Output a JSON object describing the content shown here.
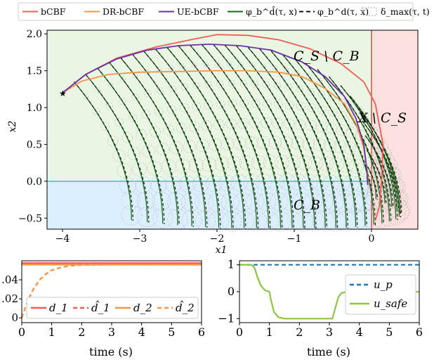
{
  "legend": {
    "entries": [
      {
        "label": "bCBF",
        "color": "#f25c54",
        "style": "solid"
      },
      {
        "label": "DR-bCBF",
        "color": "#f59548",
        "style": "solid"
      },
      {
        "label": "UE-bCBF",
        "color": "#6a32a8",
        "style": "solid"
      },
      {
        "label": "φ_b^d̂(τ, x)",
        "color": "#1a6b1a",
        "style": "solid"
      },
      {
        "label": "φ_b^d(τ, x)",
        "color": "#111111",
        "style": "dashed"
      },
      {
        "label": "δ_max(τ, t)",
        "color": "#aaaaaa",
        "style": "dotted-box"
      }
    ]
  },
  "region_labels": {
    "safe_minus_backup": "C_S \\ C_B",
    "outside_safe": "X \\ C_S",
    "backup": "C_B"
  },
  "colors": {
    "safe_region": "#eaf6e3",
    "backup_region": "#dcefff",
    "unsafe_region": "#fde0e0",
    "boundary_safe": "#e03030",
    "boundary_backup": "#2aa7d8",
    "uncertainty": "#bbbbbb"
  },
  "chart_data": [
    {
      "type": "line",
      "id": "phase",
      "xlabel": "x1",
      "ylabel": "x2",
      "xlim": [
        -4.2,
        0.6
      ],
      "ylim": [
        -0.65,
        2.05
      ],
      "xticks": [
        -4,
        -3,
        -2,
        -1,
        0
      ],
      "yticks": [
        -0.5,
        0.0,
        0.5,
        1.0,
        1.5,
        2.0
      ],
      "regions": {
        "safe_boundary_x1": 0,
        "backup_boundary_x2": 0
      },
      "start_point": [
        -4.0,
        1.2
      ],
      "series": [
        {
          "name": "bCBF",
          "color": "#f25c54",
          "points": [
            [
              -4.0,
              1.2
            ],
            [
              -3.7,
              1.45
            ],
            [
              -3.3,
              1.67
            ],
            [
              -2.8,
              1.82
            ],
            [
              -2.3,
              1.93
            ],
            [
              -2.0,
              1.99
            ],
            [
              -1.6,
              1.98
            ],
            [
              -1.2,
              1.92
            ],
            [
              -0.8,
              1.8
            ],
            [
              -0.4,
              1.6
            ],
            [
              -0.1,
              1.35
            ],
            [
              0.05,
              1.05
            ],
            [
              0.15,
              0.5
            ],
            [
              0.13,
              0.0
            ],
            [
              0.1,
              -0.35
            ],
            [
              0.05,
              -0.53
            ]
          ]
        },
        {
          "name": "DR-bCBF",
          "color": "#f59548",
          "points": [
            [
              -4.0,
              1.2
            ],
            [
              -3.75,
              1.36
            ],
            [
              -3.4,
              1.45
            ],
            [
              -3.0,
              1.48
            ],
            [
              -2.5,
              1.49
            ],
            [
              -2.0,
              1.5
            ],
            [
              -1.6,
              1.5
            ],
            [
              -1.2,
              1.48
            ],
            [
              -0.9,
              1.42
            ],
            [
              -0.6,
              1.26
            ],
            [
              -0.35,
              1.05
            ],
            [
              -0.2,
              0.78
            ],
            [
              -0.1,
              0.45
            ],
            [
              -0.05,
              0.1
            ],
            [
              -0.05,
              -0.05
            ]
          ]
        },
        {
          "name": "UE-bCBF",
          "color": "#6a32a8",
          "points": [
            [
              -4.0,
              1.2
            ],
            [
              -3.7,
              1.45
            ],
            [
              -3.3,
              1.66
            ],
            [
              -2.9,
              1.78
            ],
            [
              -2.5,
              1.84
            ],
            [
              -2.1,
              1.86
            ],
            [
              -1.7,
              1.84
            ],
            [
              -1.3,
              1.78
            ],
            [
              -0.9,
              1.62
            ],
            [
              -0.6,
              1.42
            ],
            [
              -0.35,
              1.15
            ],
            [
              -0.2,
              0.85
            ],
            [
              -0.1,
              0.5
            ],
            [
              -0.06,
              0.15
            ],
            [
              -0.05,
              -0.05
            ]
          ]
        }
      ],
      "backup_start_points": [
        [
          -3.85,
          1.35
        ],
        [
          -3.7,
          1.45
        ],
        [
          -3.55,
          1.54
        ],
        [
          -3.4,
          1.62
        ],
        [
          -3.25,
          1.68
        ],
        [
          -3.1,
          1.73
        ],
        [
          -2.95,
          1.77
        ],
        [
          -2.8,
          1.8
        ],
        [
          -2.65,
          1.82
        ],
        [
          -2.5,
          1.84
        ],
        [
          -2.35,
          1.85
        ],
        [
          -2.2,
          1.86
        ],
        [
          -2.05,
          1.86
        ],
        [
          -1.9,
          1.85
        ],
        [
          -1.75,
          1.84
        ],
        [
          -1.6,
          1.82
        ],
        [
          -1.45,
          1.8
        ],
        [
          -1.3,
          1.77
        ],
        [
          -1.15,
          1.72
        ],
        [
          -1.0,
          1.67
        ],
        [
          -0.85,
          1.6
        ],
        [
          -0.7,
          1.52
        ],
        [
          -0.55,
          1.42
        ],
        [
          -0.4,
          1.3
        ],
        [
          -0.28,
          1.16
        ],
        [
          -0.18,
          1.0
        ],
        [
          -0.12,
          0.82
        ],
        [
          -0.08,
          0.62
        ],
        [
          -0.06,
          0.42
        ],
        [
          -0.05,
          0.2
        ]
      ],
      "backup_decay": 0.55
    },
    {
      "type": "line",
      "id": "disturbance",
      "xlabel": "time (s)",
      "ylabel": "",
      "xlim": [
        0,
        6
      ],
      "ylim": [
        -0.005,
        0.06
      ],
      "xticks": [
        0,
        1,
        2,
        3,
        4,
        5,
        6
      ],
      "ytick_labels": [
        ".04",
        ".02",
        "0"
      ],
      "ytick_values": [
        0.04,
        0.02,
        0
      ],
      "series": [
        {
          "name": "d1",
          "label": "d_1",
          "color": "#f25c54",
          "style": "solid",
          "points": [
            [
              0,
              0.0575
            ],
            [
              6,
              0.0575
            ]
          ]
        },
        {
          "name": "d1_hat",
          "label": "d̂_1",
          "color": "#f25c54",
          "style": "dashed",
          "points": [
            [
              0,
              0.0575
            ],
            [
              6,
              0.0575
            ]
          ]
        },
        {
          "name": "d2",
          "label": "d_2",
          "color": "#f59548",
          "style": "solid",
          "points": [
            [
              0,
              0.056
            ],
            [
              6,
              0.056
            ]
          ]
        },
        {
          "name": "d2_hat",
          "label": "d̂_2",
          "color": "#f59548",
          "style": "dashed",
          "points": [
            [
              0,
              0
            ],
            [
              0.2,
              0.018
            ],
            [
              0.4,
              0.031
            ],
            [
              0.6,
              0.04
            ],
            [
              0.8,
              0.046
            ],
            [
              1.0,
              0.05
            ],
            [
              1.3,
              0.053
            ],
            [
              1.6,
              0.0548
            ],
            [
              2.0,
              0.0556
            ],
            [
              3.0,
              0.056
            ],
            [
              6,
              0.056
            ]
          ]
        }
      ]
    },
    {
      "type": "line",
      "id": "control",
      "xlabel": "time (s)",
      "ylabel": "",
      "xlim": [
        0,
        6
      ],
      "ylim": [
        -1.15,
        1.15
      ],
      "xticks": [
        0,
        1,
        2,
        3,
        4,
        5,
        6
      ],
      "yticks": [
        1,
        0,
        -1
      ],
      "series": [
        {
          "name": "u_p",
          "label": "u_p",
          "color": "#1f77b4",
          "style": "dashed",
          "points": [
            [
              0,
              1
            ],
            [
              6,
              1
            ]
          ]
        },
        {
          "name": "u_safe",
          "label": "u_safe",
          "color": "#8dc63f",
          "style": "solid",
          "points": [
            [
              0,
              1
            ],
            [
              0.4,
              1
            ],
            [
              0.5,
              0.9
            ],
            [
              0.6,
              0.55
            ],
            [
              0.7,
              0.25
            ],
            [
              0.85,
              0.05
            ],
            [
              1.0,
              0.0
            ],
            [
              1.05,
              -0.3
            ],
            [
              1.15,
              -0.75
            ],
            [
              1.3,
              -0.95
            ],
            [
              1.5,
              -1.0
            ],
            [
              3.1,
              -1.0
            ],
            [
              3.2,
              -0.6
            ],
            [
              3.3,
              -0.2
            ],
            [
              3.4,
              -0.05
            ],
            [
              3.6,
              0.0
            ],
            [
              6,
              0.0
            ]
          ]
        }
      ]
    }
  ]
}
